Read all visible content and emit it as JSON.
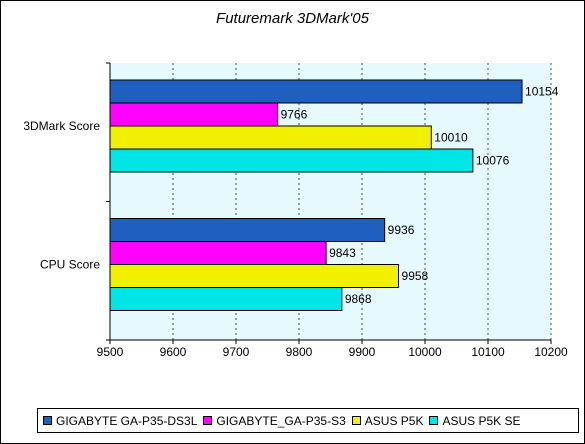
{
  "chart_data": {
    "type": "bar",
    "orientation": "horizontal",
    "title": "Futuremark 3DMark'05",
    "categories": [
      "3DMark Score",
      "CPU Score"
    ],
    "series": [
      {
        "name": "GIGABYTE GA-P35-DS3L",
        "color": "#1f5fbf",
        "values": [
          10154,
          9936
        ]
      },
      {
        "name": "GIGABYTE_GA-P35-S3",
        "color": "#ff00ff",
        "values": [
          9766,
          9843
        ]
      },
      {
        "name": "ASUS P5K",
        "color": "#f0f000",
        "values": [
          10010,
          9958
        ]
      },
      {
        "name": "ASUS P5K SE",
        "color": "#00e5e5",
        "values": [
          10076,
          9868
        ]
      }
    ],
    "xlim": [
      9500,
      10200
    ],
    "xticks": [
      9500,
      9600,
      9700,
      9800,
      9900,
      10000,
      10100,
      10200
    ],
    "plot_background": "#e6fafd",
    "grid": "vertical-dashed",
    "legend_position": "bottom"
  }
}
